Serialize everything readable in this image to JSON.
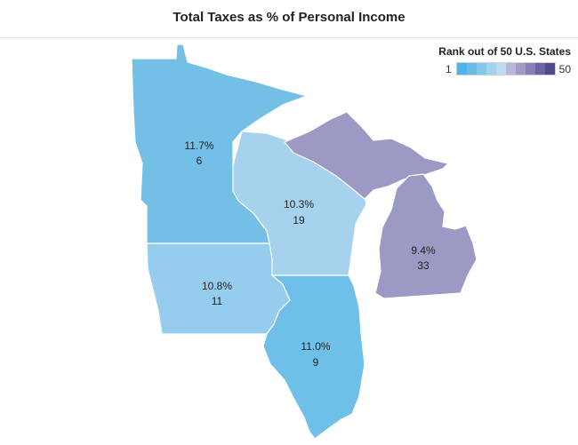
{
  "title": "Total Taxes as % of Personal Income",
  "legend": {
    "title": "Rank out of 50 U.S. States",
    "min_label": "1",
    "max_label": "50",
    "swatches": [
      "#4fb3e3",
      "#67bde6",
      "#84c8ea",
      "#a3d3ee",
      "#c0dcef",
      "#b8b8d6",
      "#9e9cc6",
      "#8481b4",
      "#6a65a2",
      "#504b8d"
    ]
  },
  "states": [
    {
      "name": "Minnesota",
      "pct": "11.7%",
      "rank": "6",
      "color": "#74bfe6"
    },
    {
      "name": "Wisconsin",
      "pct": "10.3%",
      "rank": "19",
      "color": "#a7d2ee"
    },
    {
      "name": "Iowa",
      "pct": "10.8%",
      "rank": "11",
      "color": "#96cdee"
    },
    {
      "name": "Illinois",
      "pct": "11.0%",
      "rank": "9",
      "color": "#6fc0e8"
    },
    {
      "name": "Michigan",
      "pct": "9.4%",
      "rank": "33",
      "color": "#9c9ac5"
    }
  ]
}
